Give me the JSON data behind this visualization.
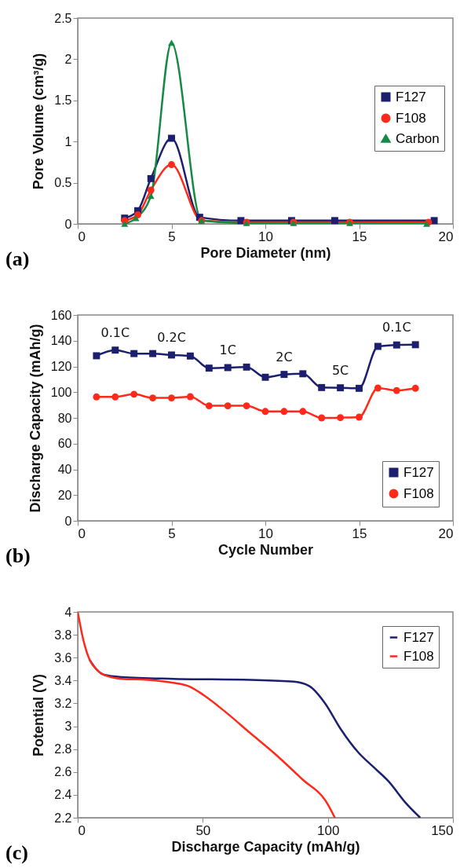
{
  "chart_data": [
    {
      "type": "line",
      "xlabel": "Pore Diameter (nm)",
      "ylabel": "Pore Volume (cm³/g)",
      "xlim": [
        0,
        20
      ],
      "xticks": [
        0,
        5,
        10,
        15,
        20
      ],
      "ylim": [
        0,
        2.5
      ],
      "yticks": [
        0,
        0.5,
        1,
        1.5,
        2,
        2.5
      ],
      "grid": false,
      "legend": "right",
      "annotations": [
        "(a)"
      ],
      "series": [
        {
          "name": "F127",
          "color": "#1c1f6e",
          "marker": "square",
          "x": [
            2.5,
            3.2,
            3.9,
            5.0,
            6.5,
            8.7,
            11.4,
            13.7,
            19.0
          ],
          "values": [
            0.07,
            0.16,
            0.55,
            1.04,
            0.08,
            0.04,
            0.04,
            0.04,
            0.04
          ]
        },
        {
          "name": "F108",
          "color": "#ff2a1a",
          "marker": "circle",
          "x": [
            2.5,
            3.2,
            3.9,
            5.0,
            6.6,
            9.0,
            11.5,
            14.5,
            18.7
          ],
          "values": [
            0.04,
            0.11,
            0.41,
            0.72,
            0.04,
            0.02,
            0.02,
            0.02,
            0.02
          ]
        },
        {
          "name": "Carbon",
          "color": "#148a44",
          "marker": "triangle",
          "x": [
            2.5,
            3.1,
            3.9,
            5.0,
            6.6,
            9.0,
            11.5,
            14.5,
            18.6
          ],
          "values": [
            0.0,
            0.07,
            0.34,
            2.2,
            0.04,
            0.01,
            0.01,
            0.01,
            0.0
          ]
        }
      ]
    },
    {
      "type": "line",
      "xlabel": "Cycle Number",
      "ylabel": "Discharge Capacity (mAh/g)",
      "xlim": [
        0,
        20
      ],
      "xticks": [
        0,
        5,
        10,
        15,
        20
      ],
      "ylim": [
        0,
        160
      ],
      "yticks": [
        0,
        20,
        40,
        60,
        80,
        100,
        120,
        140,
        160
      ],
      "grid": false,
      "legend": "bottom right",
      "annotations": [
        "(b)",
        {
          "text": "0.1C",
          "x": 2,
          "y": 132.7
        },
        {
          "text": "0.2C",
          "x": 5,
          "y": 128.9
        },
        {
          "text": "1C",
          "x": 8,
          "y": 119.1
        },
        {
          "text": "2C",
          "x": 11,
          "y": 113.8
        },
        {
          "text": "5C",
          "x": 14,
          "y": 103.4
        },
        {
          "text": "0.1C",
          "x": 17,
          "y": 136.7
        }
      ],
      "x": [
        1,
        2,
        3,
        4,
        5,
        6,
        7,
        8,
        9,
        10,
        11,
        12,
        13,
        14,
        15,
        16,
        17,
        18
      ],
      "series": [
        {
          "name": "F127",
          "color": "#1c1f6e",
          "marker": "square",
          "values": [
            128.3,
            132.7,
            130,
            130,
            128.9,
            128.1,
            118.7,
            119.1,
            119.5,
            111.6,
            113.8,
            114.3,
            103.6,
            103.4,
            103,
            135.6,
            136.7,
            136.9
          ]
        },
        {
          "name": "F108",
          "color": "#ff2a1a",
          "marker": "circle",
          "values": [
            96.3,
            96.3,
            98.4,
            95.5,
            95.5,
            96.5,
            89.4,
            89.4,
            89.4,
            85,
            85,
            85,
            80,
            80.2,
            80.6,
            103.2,
            101.3,
            103
          ]
        }
      ]
    },
    {
      "type": "line",
      "xlabel": "Discharge Capacity (mAh/g)",
      "ylabel": "Potential (V)",
      "xlim": [
        0,
        150
      ],
      "xticks": [
        0,
        50,
        100,
        150
      ],
      "ylim": [
        2.2,
        4
      ],
      "yticks": [
        2.2,
        2.4,
        2.6,
        2.8,
        3,
        3.2,
        3.4,
        3.6,
        3.8,
        4
      ],
      "grid": false,
      "legend": "top right",
      "annotations": [
        "(c)"
      ],
      "series": [
        {
          "name": "F127",
          "color": "#1c1f6e",
          "x": [
            4.8,
            7.4,
            10.5,
            17.7,
            38.2,
            69,
            86.5,
            92.7,
            98.9,
            105,
            112.2,
            118.4,
            124.6,
            130.7,
            136.9
          ],
          "values": [
            3.58,
            3.5,
            3.45,
            3.43,
            3.415,
            3.406,
            3.39,
            3.35,
            3.2,
            2.98,
            2.77,
            2.64,
            2.51,
            2.34,
            2.2
          ]
        },
        {
          "name": "F108",
          "color": "#ff2a1a",
          "x": [
            0,
            2.3,
            4.8,
            7.4,
            10.5,
            17.7,
            28,
            38.2,
            44.4,
            50.5,
            58.8,
            69,
            79.3,
            89.6,
            99.9,
            102.8
          ],
          "values": [
            4,
            3.75,
            3.58,
            3.5,
            3.45,
            3.415,
            3.406,
            3.38,
            3.35,
            3.27,
            3.13,
            2.94,
            2.75,
            2.54,
            2.32,
            2.2
          ]
        }
      ]
    }
  ]
}
